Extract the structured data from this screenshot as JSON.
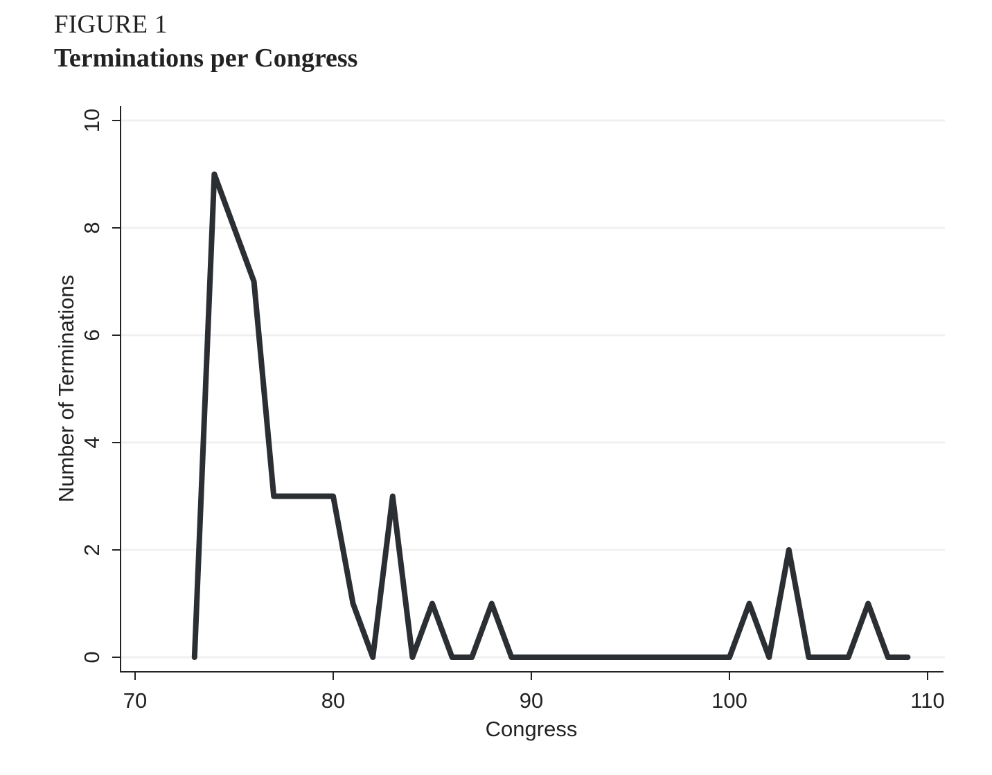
{
  "figure": {
    "label": "FIGURE 1",
    "title": "Terminations per Congress"
  },
  "chart_data": {
    "type": "line",
    "title": "Terminations per Congress",
    "xlabel": "Congress",
    "ylabel": "Number of Terminations",
    "xlim": [
      70,
      110
    ],
    "ylim": [
      0,
      10
    ],
    "xticks": [
      70,
      80,
      90,
      100,
      110
    ],
    "yticks": [
      0,
      2,
      4,
      6,
      8,
      10
    ],
    "grid": true,
    "legend": "none",
    "colors": {
      "line": "#2b2e33",
      "grid": "#f0f0f0",
      "axis": "#222222"
    },
    "series": [
      {
        "x": [
          73,
          74,
          75,
          76,
          77,
          78,
          79,
          80,
          81,
          82,
          83,
          84,
          85,
          86,
          87,
          88,
          89,
          90,
          91,
          92,
          93,
          94,
          95,
          96,
          97,
          98,
          99,
          100,
          101,
          102,
          103,
          104,
          105,
          106,
          107,
          108,
          109
        ],
        "y": [
          0,
          9,
          8,
          7,
          3,
          3,
          3,
          3,
          1,
          0,
          3,
          0,
          1,
          0,
          0,
          1,
          0,
          0,
          0,
          0,
          0,
          0,
          0,
          0,
          0,
          0,
          0,
          0,
          1,
          0,
          2,
          0,
          0,
          0,
          1,
          0,
          0
        ]
      }
    ]
  }
}
